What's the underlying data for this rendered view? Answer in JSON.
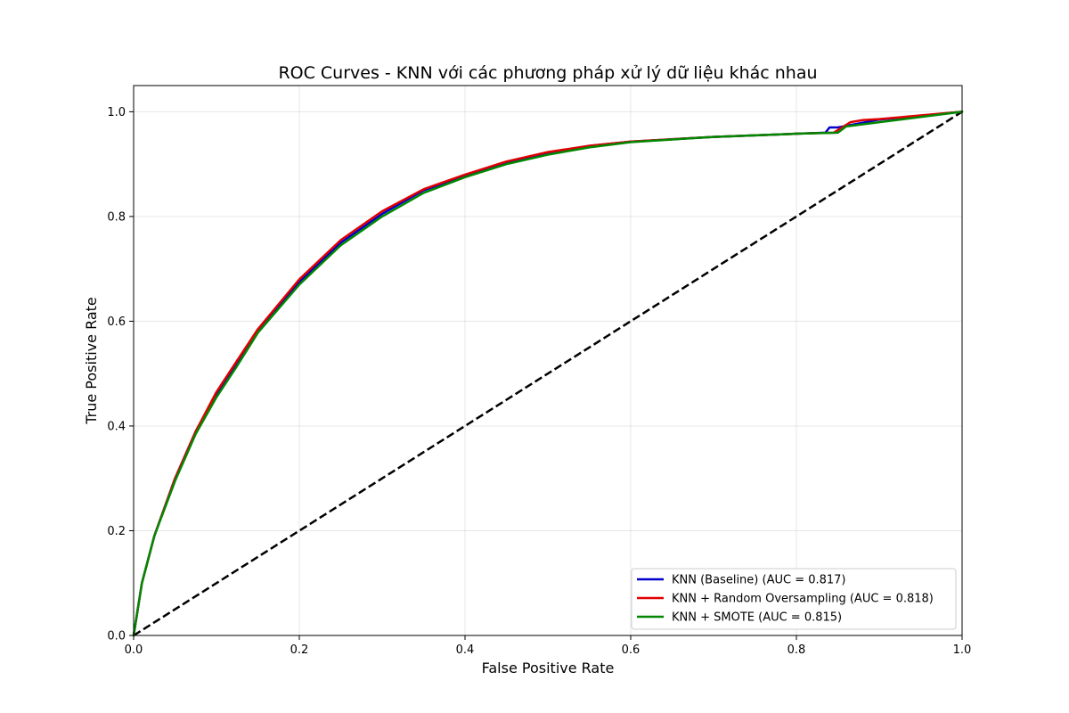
{
  "chart_data": {
    "type": "line",
    "title": "ROC Curves - KNN với các phương pháp xử lý dữ liệu khác nhau",
    "xlabel": "False Positive Rate",
    "ylabel": "True Positive Rate",
    "xlim": [
      0.0,
      1.0
    ],
    "ylim": [
      0.0,
      1.05
    ],
    "x_ticks": [
      "0.0",
      "0.2",
      "0.4",
      "0.6",
      "0.8",
      "1.0"
    ],
    "y_ticks": [
      "0.0",
      "0.2",
      "0.4",
      "0.6",
      "0.8",
      "1.0"
    ],
    "grid": true,
    "legend_position": "lower-right",
    "series": [
      {
        "name": "KNN (Baseline) (AUC = 0.817)",
        "color": "#0000cc",
        "x": [
          0.0,
          0.01,
          0.025,
          0.05,
          0.075,
          0.1,
          0.125,
          0.15,
          0.2,
          0.25,
          0.3,
          0.35,
          0.4,
          0.45,
          0.5,
          0.55,
          0.6,
          0.7,
          0.8,
          0.835,
          0.84,
          0.85,
          0.9,
          1.0
        ],
        "y": [
          0.0,
          0.1,
          0.19,
          0.3,
          0.39,
          0.46,
          0.52,
          0.58,
          0.675,
          0.75,
          0.805,
          0.85,
          0.878,
          0.902,
          0.922,
          0.935,
          0.943,
          0.952,
          0.958,
          0.96,
          0.97,
          0.97,
          0.985,
          1.0
        ]
      },
      {
        "name": "KNN + Random Oversampling (AUC = 0.818)",
        "color": "#e00000",
        "x": [
          0.0,
          0.01,
          0.025,
          0.05,
          0.075,
          0.1,
          0.125,
          0.15,
          0.2,
          0.25,
          0.3,
          0.35,
          0.4,
          0.45,
          0.5,
          0.55,
          0.6,
          0.7,
          0.8,
          0.845,
          0.855,
          0.865,
          0.88,
          0.9,
          1.0
        ],
        "y": [
          0.0,
          0.1,
          0.19,
          0.3,
          0.39,
          0.465,
          0.525,
          0.585,
          0.68,
          0.755,
          0.81,
          0.852,
          0.88,
          0.905,
          0.923,
          0.935,
          0.943,
          0.952,
          0.958,
          0.96,
          0.97,
          0.98,
          0.984,
          0.986,
          1.0
        ]
      },
      {
        "name": "KNN + SMOTE (AUC = 0.815)",
        "color": "#008800",
        "x": [
          0.0,
          0.01,
          0.025,
          0.05,
          0.075,
          0.1,
          0.125,
          0.15,
          0.2,
          0.25,
          0.3,
          0.35,
          0.4,
          0.45,
          0.5,
          0.55,
          0.6,
          0.7,
          0.8,
          0.85,
          0.86,
          0.9,
          1.0
        ],
        "y": [
          0.0,
          0.1,
          0.19,
          0.295,
          0.385,
          0.455,
          0.515,
          0.578,
          0.67,
          0.745,
          0.8,
          0.845,
          0.875,
          0.9,
          0.918,
          0.932,
          0.942,
          0.952,
          0.958,
          0.96,
          0.972,
          0.98,
          1.0
        ]
      }
    ],
    "reference_line": {
      "x": [
        0.0,
        1.0
      ],
      "y": [
        0.0,
        1.0
      ],
      "color": "#000000",
      "style": "dashed"
    }
  }
}
